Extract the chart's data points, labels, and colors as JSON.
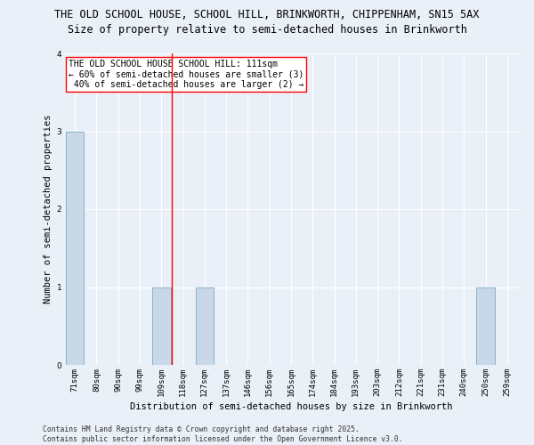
{
  "title_line1": "THE OLD SCHOOL HOUSE, SCHOOL HILL, BRINKWORTH, CHIPPENHAM, SN15 5AX",
  "title_line2": "Size of property relative to semi-detached houses in Brinkworth",
  "xlabel": "Distribution of semi-detached houses by size in Brinkworth",
  "ylabel": "Number of semi-detached properties",
  "categories": [
    "71sqm",
    "80sqm",
    "90sqm",
    "99sqm",
    "109sqm",
    "118sqm",
    "127sqm",
    "137sqm",
    "146sqm",
    "156sqm",
    "165sqm",
    "174sqm",
    "184sqm",
    "193sqm",
    "203sqm",
    "212sqm",
    "221sqm",
    "231sqm",
    "240sqm",
    "250sqm",
    "259sqm"
  ],
  "values": [
    3,
    0,
    0,
    0,
    1,
    0,
    1,
    0,
    0,
    0,
    0,
    0,
    0,
    0,
    0,
    0,
    0,
    0,
    0,
    1,
    0
  ],
  "bar_color": "#c8d8e8",
  "bar_edge_color": "#7aaac8",
  "red_line_x": 4.5,
  "annotation_text": "THE OLD SCHOOL HOUSE SCHOOL HILL: 111sqm\n← 60% of semi-detached houses are smaller (3)\n 40% of semi-detached houses are larger (2) →",
  "ylim": [
    0,
    4
  ],
  "yticks": [
    0,
    1,
    2,
    3,
    4
  ],
  "footer_line1": "Contains HM Land Registry data © Crown copyright and database right 2025.",
  "footer_line2": "Contains public sector information licensed under the Open Government Licence v3.0.",
  "bg_color": "#eaf0f8",
  "grid_color": "#ffffff",
  "title_fontsize": 8.5,
  "subtitle_fontsize": 8.5,
  "annotation_fontsize": 7,
  "axis_label_fontsize": 7.5,
  "tick_fontsize": 6.5,
  "footer_fontsize": 5.8
}
